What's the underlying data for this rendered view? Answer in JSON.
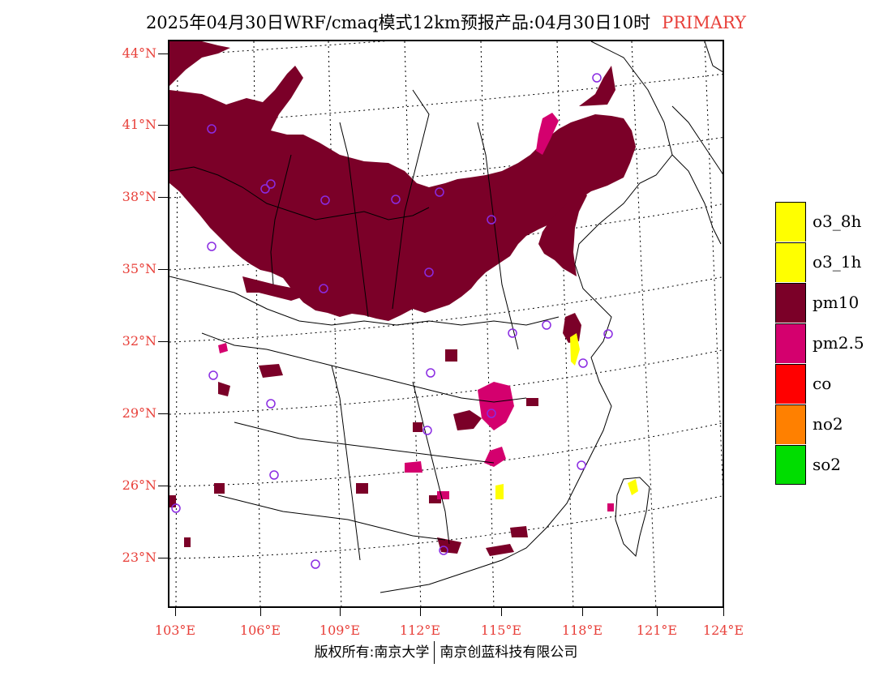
{
  "title": {
    "text": "2025年04月30日WRF/cmaq模式12km预报产品:04月30日10时",
    "tag": "PRIMARY",
    "tag_color": "#e8403a"
  },
  "axes": {
    "lat_labels": [
      "44°N",
      "41°N",
      "38°N",
      "35°N",
      "32°N",
      "29°N",
      "26°N",
      "23°N"
    ],
    "lon_labels": [
      "103°E",
      "106°E",
      "109°E",
      "112°E",
      "115°E",
      "118°E",
      "121°E",
      "124°E"
    ],
    "label_color": "#e8403a"
  },
  "legend": [
    {
      "label": "o3_8h",
      "color": "#ffff00"
    },
    {
      "label": "o3_1h",
      "color": "#ffff00"
    },
    {
      "label": "pm10",
      "color": "#7b0028"
    },
    {
      "label": "pm2.5",
      "color": "#d4006e"
    },
    {
      "label": "co",
      "color": "#ff0000"
    },
    {
      "label": "no2",
      "color": "#ff8000"
    },
    {
      "label": "so2",
      "color": "#00dd00"
    }
  ],
  "footer": {
    "left": "版权所有:南京大学",
    "right": "南京创蓝科技有限公司"
  }
}
